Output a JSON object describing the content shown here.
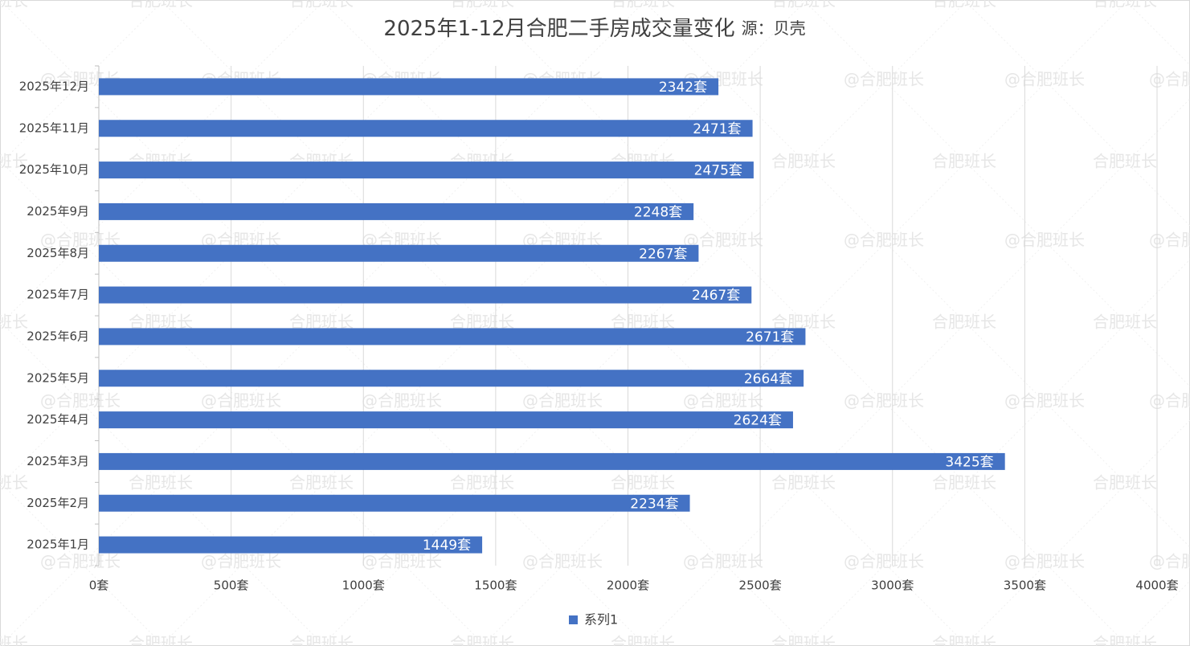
{
  "chart_data": {
    "type": "bar",
    "orientation": "horizontal",
    "title": "2025年1-12月合肥二手房成交量变化",
    "subtitle": "源：贝壳",
    "categories": [
      "2025年12月",
      "2025年11月",
      "2025年10月",
      "2025年9月",
      "2025年8月",
      "2025年7月",
      "2025年6月",
      "2025年5月",
      "2025年4月",
      "2025年3月",
      "2025年2月",
      "2025年1月"
    ],
    "series": [
      {
        "name": "系列1",
        "values": [
          2342,
          2471,
          2475,
          2248,
          2267,
          2467,
          2671,
          2664,
          2624,
          3425,
          2234,
          1449
        ]
      }
    ],
    "data_label_suffix": "套",
    "x_ticks": [
      0,
      500,
      1000,
      1500,
      2000,
      2500,
      3000,
      3500,
      4000
    ],
    "x_tick_suffix": "套",
    "xlim": [
      0,
      4000
    ],
    "xlabel": "",
    "ylabel": "",
    "grid": true,
    "legend_position": "bottom",
    "colors": {
      "bar": "#4472c4",
      "grid": "#d9d9d9",
      "axis_text": "#404040",
      "data_label": "#ffffff"
    }
  },
  "watermark": {
    "text": "@合肥班长",
    "text_short": "合肥班长"
  }
}
